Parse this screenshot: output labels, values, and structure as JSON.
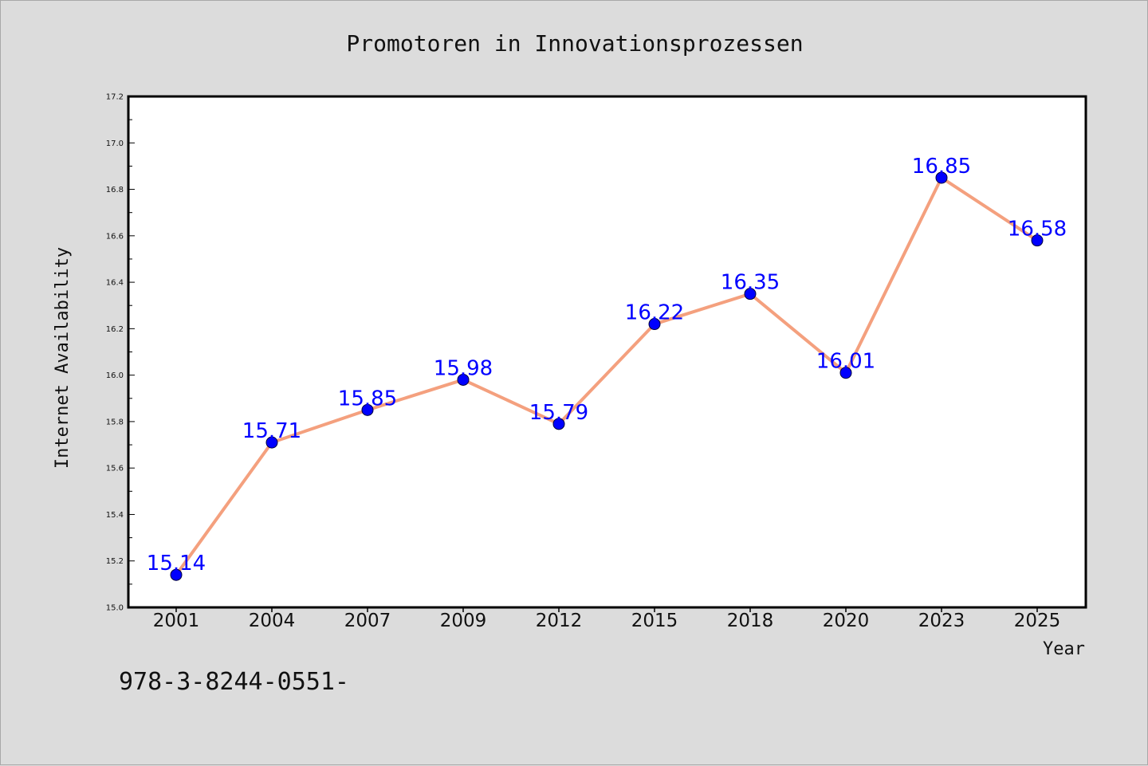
{
  "chart_data": {
    "type": "line",
    "title": "Promotoren in Innovationsprozessen",
    "xlabel": "Year",
    "ylabel": "Internet Availability",
    "categories": [
      "2001",
      "2004",
      "2007",
      "2009",
      "2012",
      "2015",
      "2018",
      "2020",
      "2023",
      "2025"
    ],
    "series": [
      {
        "values": [
          15.14,
          15.71,
          15.85,
          15.98,
          15.79,
          16.22,
          16.35,
          16.01,
          16.85,
          16.58
        ]
      }
    ],
    "data_labels": [
      "15.14",
      "15.71",
      "15.85",
      "15.98",
      "15.79",
      "16.22",
      "16.35",
      "16.01",
      "16.85",
      "16.58"
    ],
    "ylim": [
      15.0,
      17.2
    ],
    "yticks": [
      "15.0",
      "15.2",
      "15.4",
      "15.6",
      "15.8",
      "16.0",
      "16.2",
      "16.4",
      "16.6",
      "16.8",
      "17.0",
      "17.2"
    ],
    "grid": false,
    "legend": "none",
    "colors": {
      "line": "#f4a07e",
      "marker": "#0000ff",
      "marker_edge": "#00003c",
      "label": "#0000ff",
      "plot_bg": "#ffffff",
      "page_bg": "#dcdcdc"
    }
  },
  "footer_text": "978-3-8244-0551-"
}
